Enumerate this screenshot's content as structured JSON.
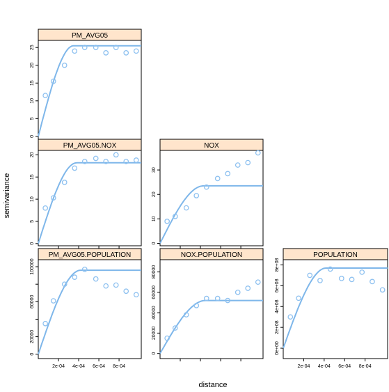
{
  "chart_data": {
    "type": "scatter",
    "xlabel": "distance",
    "ylabel": "semivariance",
    "x_tick_labels": [
      "2e-04",
      "4e-04",
      "6e-04",
      "8e-04"
    ],
    "panels": [
      {
        "id": "pm",
        "title": "PM_AVG05",
        "xlim": [
          0,
          0.00102
        ],
        "ylim": [
          -1,
          27
        ],
        "yticks": [
          0,
          5,
          10,
          15,
          20,
          25
        ],
        "ytick_labels": [
          "0",
          "5",
          "10",
          "15",
          "20",
          "25"
        ],
        "show_x_ticks": false,
        "points": [
          [
            7e-05,
            11.5
          ],
          [
            0.00015,
            15.5
          ],
          [
            0.00026,
            20
          ],
          [
            0.00036,
            24
          ],
          [
            0.00046,
            25
          ],
          [
            0.00057,
            25
          ],
          [
            0.00067,
            23.5
          ],
          [
            0.00077,
            25
          ],
          [
            0.00087,
            23.5
          ],
          [
            0.00097,
            24
          ]
        ],
        "fit": {
          "sill": 25.5,
          "range": 0.00035
        }
      },
      {
        "id": "pm-nox",
        "title": "PM_AVG05.NOX",
        "xlim": [
          0,
          0.00102
        ],
        "ylim": [
          -0.5,
          21
        ],
        "yticks": [
          0,
          5,
          10,
          15,
          20
        ],
        "ytick_labels": [
          "0",
          "5",
          "10",
          "15",
          "20"
        ],
        "show_x_ticks": false,
        "points": [
          [
            7e-05,
            8
          ],
          [
            0.00015,
            10.3
          ],
          [
            0.00026,
            13.8
          ],
          [
            0.00036,
            17
          ],
          [
            0.00046,
            18.5
          ],
          [
            0.00057,
            19.2
          ],
          [
            0.00067,
            18.5
          ],
          [
            0.00077,
            20
          ],
          [
            0.00087,
            18.5
          ],
          [
            0.00097,
            18.8
          ]
        ],
        "fit": {
          "sill": 18.2,
          "range": 0.00038
        }
      },
      {
        "id": "nox",
        "title": "NOX",
        "xlim": [
          0,
          0.00102
        ],
        "ylim": [
          -1,
          38
        ],
        "yticks": [
          0,
          10,
          20,
          30
        ],
        "ytick_labels": [
          "0",
          "10",
          "20",
          "30"
        ],
        "show_x_ticks": false,
        "points": [
          [
            7e-05,
            9
          ],
          [
            0.00015,
            11
          ],
          [
            0.00026,
            14.5
          ],
          [
            0.00036,
            19.5
          ],
          [
            0.00046,
            23
          ],
          [
            0.00057,
            26.5
          ],
          [
            0.00067,
            28.5
          ],
          [
            0.00077,
            32
          ],
          [
            0.00087,
            33
          ],
          [
            0.00097,
            37
          ]
        ],
        "fit": {
          "sill": 23.5,
          "range": 0.00043
        }
      },
      {
        "id": "pm-pop",
        "title": "PM_AVG05.POPULATION",
        "xlim": [
          0,
          0.00102
        ],
        "ylim": [
          -5000,
          108000
        ],
        "yticks": [
          0,
          20000,
          40000,
          60000,
          80000,
          100000
        ],
        "ytick_labels": [
          "0",
          "20000",
          "",
          "60000",
          "",
          "100000"
        ],
        "show_x_ticks": true,
        "points": [
          [
            7e-05,
            35000
          ],
          [
            0.00015,
            61000
          ],
          [
            0.00026,
            80000
          ],
          [
            0.00036,
            88000
          ],
          [
            0.00046,
            97000
          ],
          [
            0.00057,
            86000
          ],
          [
            0.00067,
            78000
          ],
          [
            0.00077,
            79000
          ],
          [
            0.00087,
            72000
          ],
          [
            0.00097,
            68000
          ]
        ],
        "fit": {
          "sill": 96000,
          "range": 0.00042
        }
      },
      {
        "id": "nox-pop",
        "title": "NOX.POPULATION",
        "xlim": [
          0,
          0.00102
        ],
        "ylim": [
          -5000,
          92000
        ],
        "yticks": [
          0,
          20000,
          40000,
          60000,
          80000
        ],
        "ytick_labels": [
          "0",
          "20000",
          "40000",
          "60000",
          "80000"
        ],
        "show_x_ticks": false,
        "points": [
          [
            7e-05,
            15000
          ],
          [
            0.00015,
            25000
          ],
          [
            0.00026,
            38000
          ],
          [
            0.00036,
            47000
          ],
          [
            0.00046,
            54000
          ],
          [
            0.00057,
            54000
          ],
          [
            0.00067,
            52000
          ],
          [
            0.00077,
            60000
          ],
          [
            0.00087,
            64000
          ],
          [
            0.00097,
            70000
          ]
        ],
        "fit": {
          "sill": 52000,
          "range": 0.00045
        }
      },
      {
        "id": "pop",
        "title": "POPULATION",
        "xlim": [
          0,
          0.00102
        ],
        "ylim": [
          -100000000.0,
          850000000.0
        ],
        "yticks": [
          0,
          200000000.0,
          400000000.0,
          600000000.0,
          800000000.0
        ],
        "ytick_labels": [
          "0e+00",
          "2e+08",
          "4e+08",
          "6e+08",
          "8e+08"
        ],
        "show_x_ticks": true,
        "points": [
          [
            7e-05,
            300000000.0
          ],
          [
            0.00015,
            480000000.0
          ],
          [
            0.00026,
            700000000.0
          ],
          [
            0.00036,
            650000000.0
          ],
          [
            0.00046,
            760000000.0
          ],
          [
            0.00057,
            670000000.0
          ],
          [
            0.00067,
            660000000.0
          ],
          [
            0.00077,
            730000000.0
          ],
          [
            0.00087,
            640000000.0
          ],
          [
            0.00097,
            560000000.0
          ]
        ],
        "fit": {
          "sill": 770000000.0,
          "range": 0.00042
        }
      }
    ]
  }
}
